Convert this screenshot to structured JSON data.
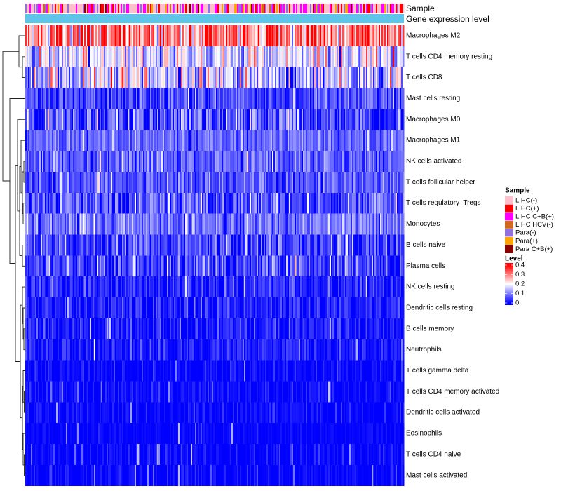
{
  "chart_data": {
    "type": "heatmap",
    "title": "",
    "annotations": [
      {
        "label": "Sample"
      },
      {
        "label": "Gene expression level",
        "color": "#5ec5e8"
      }
    ],
    "rows": [
      {
        "label": "Macrophages M2",
        "mean_level": 0.29,
        "sd_level": 0.08
      },
      {
        "label": "T cells CD4 memory resting",
        "mean_level": 0.17,
        "sd_level": 0.07
      },
      {
        "label": "T cells CD8",
        "mean_level": 0.14,
        "sd_level": 0.08
      },
      {
        "label": "Mast cells resting",
        "mean_level": 0.05,
        "sd_level": 0.04
      },
      {
        "label": "Macrophages M0",
        "mean_level": 0.06,
        "sd_level": 0.06
      },
      {
        "label": "Macrophages M1",
        "mean_level": 0.08,
        "sd_level": 0.03
      },
      {
        "label": "NK cells activated",
        "mean_level": 0.07,
        "sd_level": 0.04
      },
      {
        "label": "T cells follicular helper",
        "mean_level": 0.07,
        "sd_level": 0.035
      },
      {
        "label": "T cells regulatory  Tregs",
        "mean_level": 0.065,
        "sd_level": 0.05
      },
      {
        "label": "Monocytes",
        "mean_level": 0.09,
        "sd_level": 0.04
      },
      {
        "label": "B cells naive",
        "mean_level": 0.05,
        "sd_level": 0.04
      },
      {
        "label": "Plasma cells",
        "mean_level": 0.05,
        "sd_level": 0.05
      },
      {
        "label": "NK cells resting",
        "mean_level": 0.03,
        "sd_level": 0.03
      },
      {
        "label": "Dendritic cells resting",
        "mean_level": 0.025,
        "sd_level": 0.03
      },
      {
        "label": "B cells memory",
        "mean_level": 0.02,
        "sd_level": 0.03
      },
      {
        "label": "Neutrophils",
        "mean_level": 0.02,
        "sd_level": 0.025
      },
      {
        "label": "T cells gamma delta",
        "mean_level": 0.005,
        "sd_level": 0.02
      },
      {
        "label": "T cells CD4 memory activated",
        "mean_level": 0.005,
        "sd_level": 0.02
      },
      {
        "label": "Dendritic cells activated",
        "mean_level": 0.005,
        "sd_level": 0.02
      },
      {
        "label": "Eosinophils",
        "mean_level": 0.002,
        "sd_level": 0.01
      },
      {
        "label": "T cells CD4 naive",
        "mean_level": 0.004,
        "sd_level": 0.02
      },
      {
        "label": "Mast cells activated",
        "mean_level": 0.005,
        "sd_level": 0.02
      }
    ],
    "color_scale": {
      "title": "Level",
      "stops": [
        {
          "value": 0,
          "color": "#0000ff"
        },
        {
          "value": 0.2,
          "color": "#ffffff"
        },
        {
          "value": 0.4,
          "color": "#ff0000"
        }
      ],
      "ticks": [
        0.4,
        0.3,
        0.2,
        0.1,
        0
      ],
      "tick_labels": [
        "0.4",
        "0.3",
        "0.2",
        "0.1",
        "0"
      ]
    },
    "legend": {
      "title": "Sample",
      "groups": [
        {
          "label": "LIHC(-)",
          "color": "#ffc0cb",
          "share_estimate": 0.42
        },
        {
          "label": "LIHC(+)",
          "color": "#ff0000",
          "share_estimate": 0.12
        },
        {
          "label": "LIHC C+B(+)",
          "color": "#ff00ff",
          "share_estimate": 0.26
        },
        {
          "label": "LIHC HCV(-)",
          "color": "#d2691e",
          "share_estimate": 0.03
        },
        {
          "label": "Para(-)",
          "color": "#9370db",
          "share_estimate": 0.09
        },
        {
          "label": "Para(+)",
          "color": "#ffa500",
          "share_estimate": 0.05
        },
        {
          "label": "Para C+B(+)",
          "color": "#8b0000",
          "share_estimate": 0.03
        }
      ]
    }
  }
}
